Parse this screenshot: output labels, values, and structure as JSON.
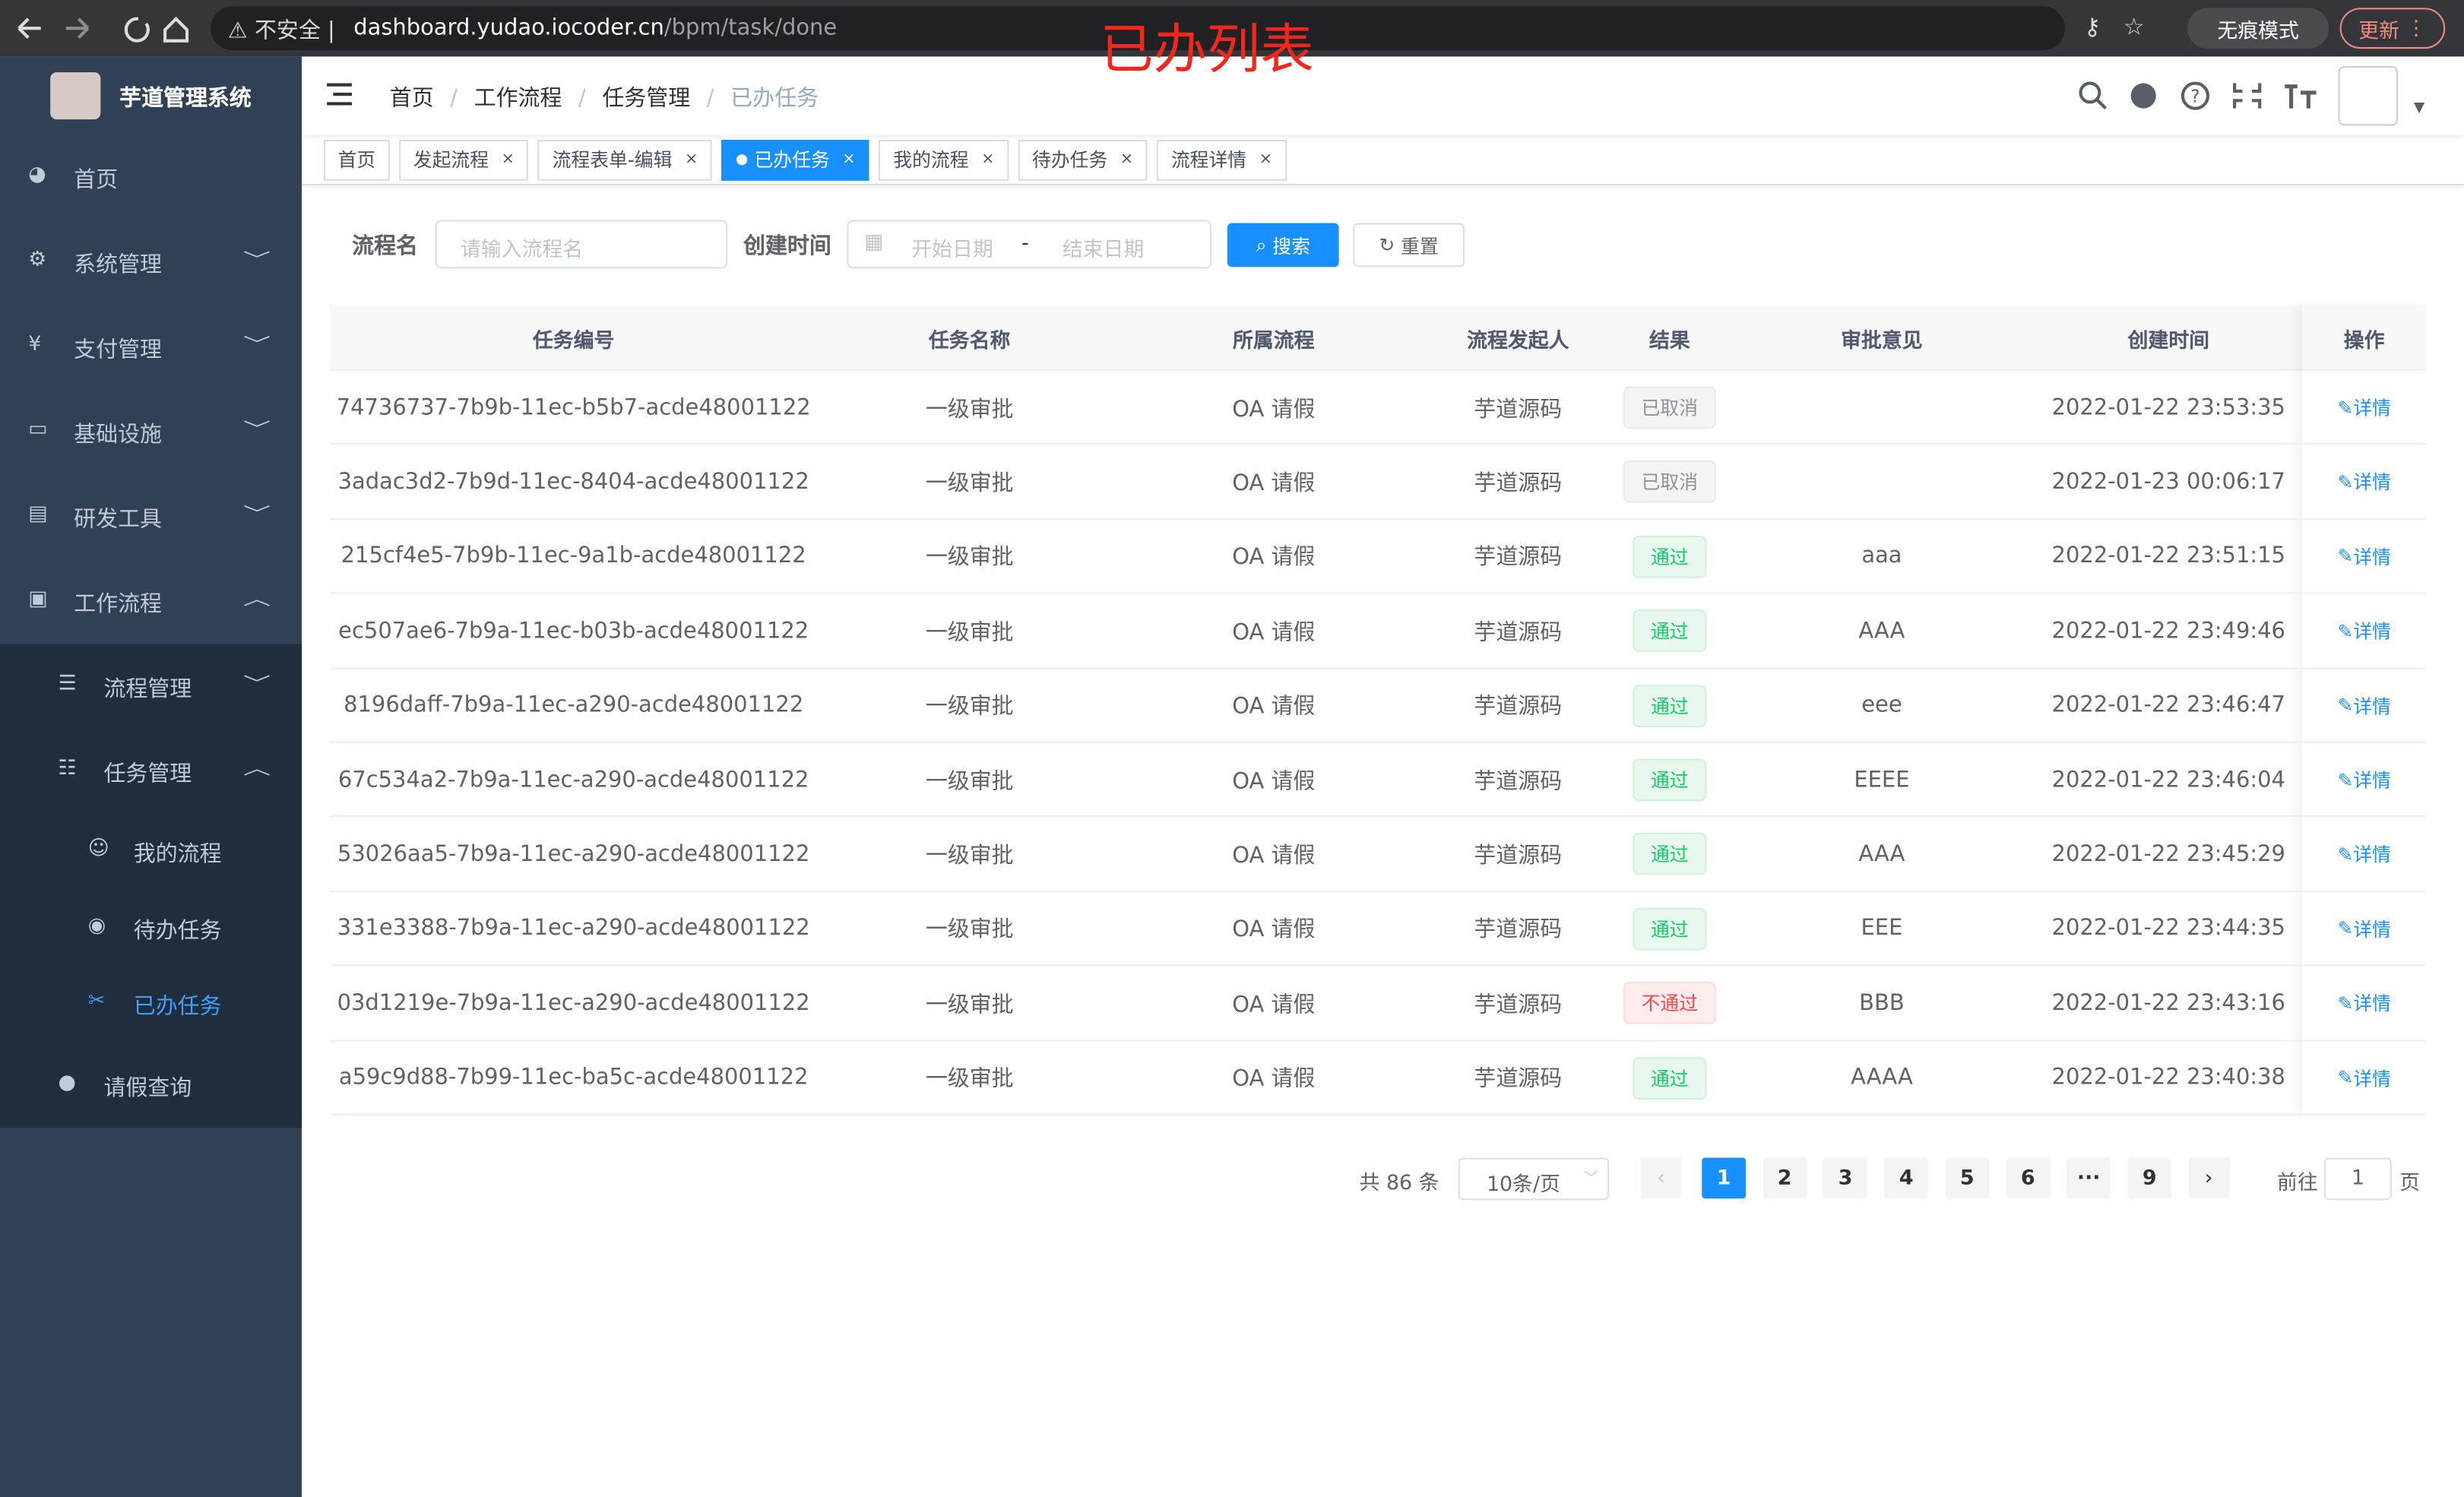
{
  "browser": {
    "security": "不安全",
    "url_host": "dashboard.yudao.iocoder.cn",
    "url_path": "/bpm/task/done",
    "incognito": "无痕模式",
    "update": "更新"
  },
  "annotation": "已办列表",
  "sidebar": {
    "title": "芋道管理系统",
    "menu": [
      {
        "label": "首页",
        "level": 0
      },
      {
        "label": "系统管理",
        "level": 0,
        "arrow": "down"
      },
      {
        "label": "支付管理",
        "level": 0,
        "arrow": "down"
      },
      {
        "label": "基础设施",
        "level": 0,
        "arrow": "down"
      },
      {
        "label": "研发工具",
        "level": 0,
        "arrow": "down"
      },
      {
        "label": "工作流程",
        "level": 0,
        "arrow": "up"
      },
      {
        "label": "流程管理",
        "level": 1,
        "arrow": "down"
      },
      {
        "label": "任务管理",
        "level": 1,
        "arrow": "up"
      },
      {
        "label": "我的流程",
        "level": 2
      },
      {
        "label": "待办任务",
        "level": 2
      },
      {
        "label": "已办任务",
        "level": 2,
        "active": true
      },
      {
        "label": "请假查询",
        "level": 1
      }
    ]
  },
  "breadcrumb": [
    "首页",
    "工作流程",
    "任务管理",
    "已办任务"
  ],
  "tags": [
    "首页",
    "发起流程",
    "流程表单-编辑",
    "已办任务",
    "我的流程",
    "待办任务",
    "流程详情"
  ],
  "active_tag": 3,
  "search": {
    "name_label": "流程名",
    "name_placeholder": "请输入流程名",
    "time_label": "创建时间",
    "start_placeholder": "开始日期",
    "separator": "-",
    "end_placeholder": "结束日期",
    "search_button": "搜索",
    "reset_button": "重置"
  },
  "table": {
    "columns": [
      "任务编号",
      "任务名称",
      "所属流程",
      "流程发起人",
      "结果",
      "审批意见",
      "创建时间",
      "操作"
    ],
    "rows": [
      {
        "id": "74736737-7b9b-11ec-b5b7-acde48001122",
        "name": "一级审批",
        "process": "OA 请假",
        "initiator": "芋道源码",
        "result": "已取消",
        "result_tone": "info",
        "comment": "",
        "created": "2022-01-22 23:53:35",
        "action": "详情"
      },
      {
        "id": "3adac3d2-7b9d-11ec-8404-acde48001122",
        "name": "一级审批",
        "process": "OA 请假",
        "initiator": "芋道源码",
        "result": "已取消",
        "result_tone": "info",
        "comment": "",
        "created": "2022-01-23 00:06:17",
        "action": "详情"
      },
      {
        "id": "215cf4e5-7b9b-11ec-9a1b-acde48001122",
        "name": "一级审批",
        "process": "OA 请假",
        "initiator": "芋道源码",
        "result": "通过",
        "result_tone": "success",
        "comment": "aaa",
        "created": "2022-01-22 23:51:15",
        "action": "详情"
      },
      {
        "id": "ec507ae6-7b9a-11ec-b03b-acde48001122",
        "name": "一级审批",
        "process": "OA 请假",
        "initiator": "芋道源码",
        "result": "通过",
        "result_tone": "success",
        "comment": "AAA",
        "created": "2022-01-22 23:49:46",
        "action": "详情"
      },
      {
        "id": "8196daff-7b9a-11ec-a290-acde48001122",
        "name": "一级审批",
        "process": "OA 请假",
        "initiator": "芋道源码",
        "result": "通过",
        "result_tone": "success",
        "comment": "eee",
        "created": "2022-01-22 23:46:47",
        "action": "详情"
      },
      {
        "id": "67c534a2-7b9a-11ec-a290-acde48001122",
        "name": "一级审批",
        "process": "OA 请假",
        "initiator": "芋道源码",
        "result": "通过",
        "result_tone": "success",
        "comment": "EEEE",
        "created": "2022-01-22 23:46:04",
        "action": "详情"
      },
      {
        "id": "53026aa5-7b9a-11ec-a290-acde48001122",
        "name": "一级审批",
        "process": "OA 请假",
        "initiator": "芋道源码",
        "result": "通过",
        "result_tone": "success",
        "comment": "AAA",
        "created": "2022-01-22 23:45:29",
        "action": "详情"
      },
      {
        "id": "331e3388-7b9a-11ec-a290-acde48001122",
        "name": "一级审批",
        "process": "OA 请假",
        "initiator": "芋道源码",
        "result": "通过",
        "result_tone": "success",
        "comment": "EEE",
        "created": "2022-01-22 23:44:35",
        "action": "详情"
      },
      {
        "id": "03d1219e-7b9a-11ec-a290-acde48001122",
        "name": "一级审批",
        "process": "OA 请假",
        "initiator": "芋道源码",
        "result": "不通过",
        "result_tone": "danger",
        "comment": "BBB",
        "created": "2022-01-22 23:43:16",
        "action": "详情"
      },
      {
        "id": "a59c9d88-7b99-11ec-ba5c-acde48001122",
        "name": "一级审批",
        "process": "OA 请假",
        "initiator": "芋道源码",
        "result": "通过",
        "result_tone": "success",
        "comment": "AAAA",
        "created": "2022-01-22 23:40:38",
        "action": "详情"
      }
    ]
  },
  "pagination": {
    "total_prefix": "共",
    "total": 86,
    "total_suffix": "条",
    "page_size": "10条/页",
    "pages": [
      1,
      2,
      3,
      4,
      5,
      6,
      "···",
      9
    ],
    "current_page": 1,
    "goto_label": "前往",
    "goto_value": 1,
    "goto_suffix": "页"
  }
}
